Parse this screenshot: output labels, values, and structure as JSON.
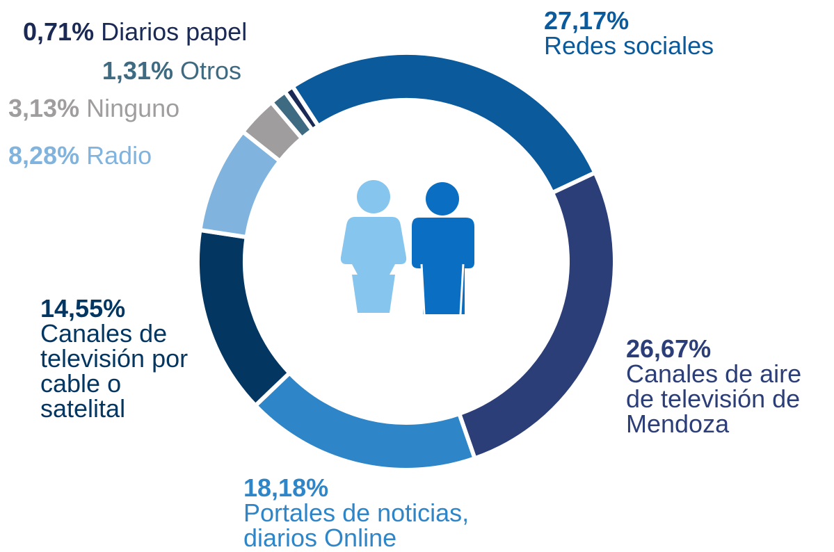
{
  "chart_data": {
    "type": "pie",
    "categories": [
      "Redes sociales",
      "Canales de aire de televisión de Mendoza",
      "Portales de noticias, diarios Online",
      "Canales de televisión por cable o satelital",
      "Radio",
      "Ninguno",
      "Otros",
      "Diarios papel"
    ],
    "values": [
      27.17,
      26.67,
      18.18,
      14.55,
      8.28,
      3.13,
      1.31,
      0.71
    ],
    "value_labels": [
      "27,17%",
      "26,67%",
      "18,18%",
      "14,55%",
      "8,28%",
      "3,13%",
      "1,31%",
      "0,71%"
    ],
    "colors": [
      "#0a5a9c",
      "#2c3e78",
      "#2e86c9",
      "#033661",
      "#80b4de",
      "#a09d9e",
      "#3e6a82",
      "#1b2a55"
    ]
  }
}
